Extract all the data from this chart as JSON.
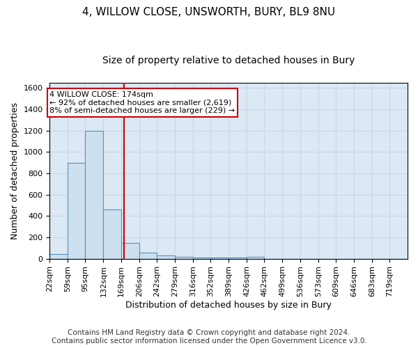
{
  "title": "4, WILLOW CLOSE, UNSWORTH, BURY, BL9 8NU",
  "subtitle": "Size of property relative to detached houses in Bury",
  "xlabel": "Distribution of detached houses by size in Bury",
  "ylabel": "Number of detached properties",
  "bin_edges": [
    22,
    59,
    95,
    132,
    169,
    206,
    242,
    279,
    316,
    352,
    389,
    426,
    462,
    499,
    536,
    573,
    609,
    646,
    683,
    719,
    756
  ],
  "bar_heights": [
    40,
    900,
    1200,
    460,
    150,
    55,
    30,
    15,
    10,
    10,
    10,
    15,
    0,
    0,
    0,
    0,
    0,
    0,
    0,
    0
  ],
  "bar_color": "#cce0f0",
  "bar_edgecolor": "#5590c0",
  "bar_linewidth": 0.8,
  "vline_x": 174,
  "vline_color": "#cc0000",
  "vline_linewidth": 1.5,
  "annotation_line1": "4 WILLOW CLOSE: 174sqm",
  "annotation_line2": "← 92% of detached houses are smaller (2,619)",
  "annotation_line3": "8% of semi-detached houses are larger (229) →",
  "annotation_box_color": "#cc0000",
  "annotation_text_color": "#000000",
  "ylim": [
    0,
    1650
  ],
  "yticks": [
    0,
    200,
    400,
    600,
    800,
    1000,
    1200,
    1400,
    1600
  ],
  "grid_color": "#c8d8e8",
  "background_color": "#dce8f4",
  "footer_text": "Contains HM Land Registry data © Crown copyright and database right 2024.\nContains public sector information licensed under the Open Government Licence v3.0.",
  "title_fontsize": 11,
  "subtitle_fontsize": 10,
  "label_fontsize": 9,
  "tick_fontsize": 8,
  "footer_fontsize": 7.5,
  "annot_fontsize": 8.0
}
